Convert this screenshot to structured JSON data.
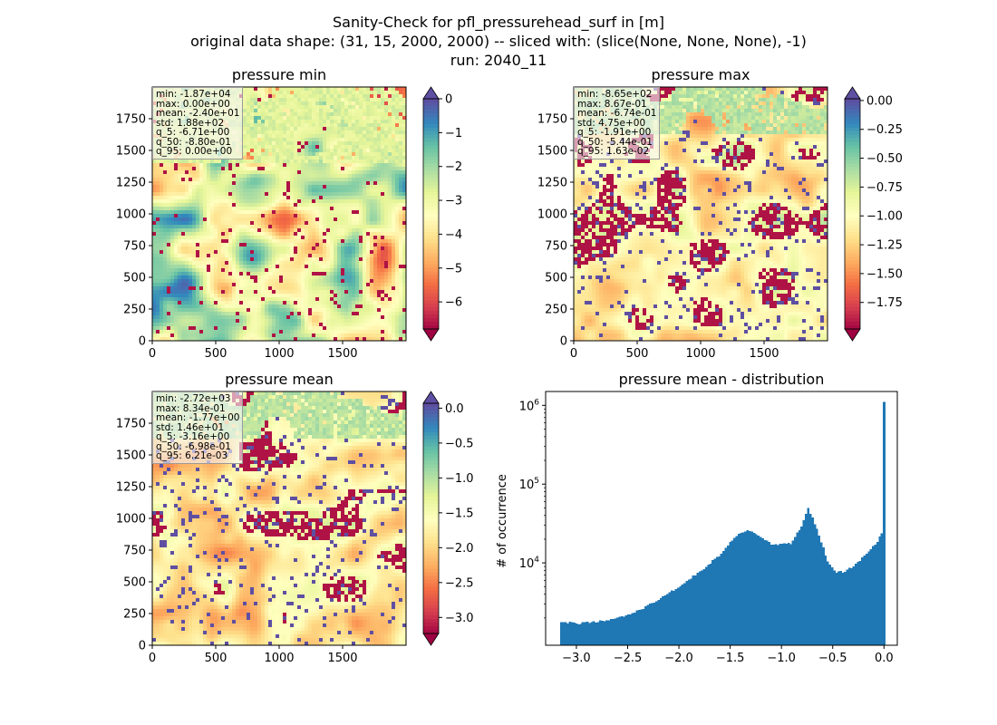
{
  "figure": {
    "title_line1": "Sanity-Check for pfl_pressurehead_surf in [m]",
    "title_line2": "original data shape: (31, 15, 2000, 2000) -- sliced with: (slice(None, None, None), -1)",
    "title_line3": "run: 2040_11"
  },
  "colormap": "Spectral",
  "chart_data": [
    {
      "type": "heatmap",
      "title": "pressure min",
      "xticks": [
        "0",
        "500",
        "1000",
        "1500"
      ],
      "yticks": [
        "0",
        "250",
        "500",
        "750",
        "1000",
        "1250",
        "1500",
        "1750"
      ],
      "xlim": [
        0,
        2000
      ],
      "ylim": [
        0,
        2000
      ],
      "colorbar": {
        "vmin": -6.8,
        "vmax": 0.0,
        "ticks": [
          0,
          -1,
          -2,
          -3,
          -4,
          -5,
          -6
        ],
        "labels": [
          "0",
          "−1",
          "−2",
          "−3",
          "−4",
          "−5",
          "−6"
        ],
        "extend": "both",
        "under_color": "#9e0142",
        "over_color": "#5e4fa2"
      },
      "stats": [
        "min: -1.87e+04",
        "max: 0.00e+00",
        "mean: -2.40e+01",
        "std: 1.88e+02",
        "q_5: -6.71e+00",
        "q_50: -8.80e-01",
        "q_95: 0.00e+00"
      ]
    },
    {
      "type": "heatmap",
      "title": "pressure max",
      "xticks": [
        "0",
        "500",
        "1000",
        "1500"
      ],
      "yticks": [
        "0",
        "250",
        "500",
        "750",
        "1000",
        "1250",
        "1500",
        "1750"
      ],
      "xlim": [
        0,
        2000
      ],
      "ylim": [
        0,
        2000
      ],
      "colorbar": {
        "vmin": -1.98,
        "vmax": 0.015,
        "ticks": [
          0,
          -0.25,
          -0.5,
          -0.75,
          -1.0,
          -1.25,
          -1.5,
          -1.75
        ],
        "labels": [
          "0.00",
          "−0.25",
          "−0.50",
          "−0.75",
          "−1.00",
          "−1.25",
          "−1.50",
          "−1.75"
        ],
        "extend": "both",
        "under_color": "#9e0142",
        "over_color": "#5e4fa2"
      },
      "stats": [
        "min: -8.65e+02",
        "max: 8.67e-01",
        "mean: -6.74e-01",
        "std: 4.75e+00",
        "q_5: -1.91e+00",
        "q_50: -5.44e-01",
        "q_95: 1.63e-02"
      ]
    },
    {
      "type": "heatmap",
      "title": "pressure mean",
      "xticks": [
        "0",
        "500",
        "1000",
        "1500"
      ],
      "yticks": [
        "0",
        "250",
        "500",
        "750",
        "1000",
        "1250",
        "1500",
        "1750"
      ],
      "xlim": [
        0,
        2000
      ],
      "ylim": [
        0,
        2000
      ],
      "colorbar": {
        "vmin": -3.23,
        "vmax": 0.07,
        "ticks": [
          0,
          -0.5,
          -1.0,
          -1.5,
          -2.0,
          -2.5,
          -3.0
        ],
        "labels": [
          "0.0",
          "−0.5",
          "−1.0",
          "−1.5",
          "−2.0",
          "−2.5",
          "−3.0"
        ],
        "extend": "both",
        "under_color": "#9e0142",
        "over_color": "#5e4fa2"
      },
      "stats": [
        "min: -2.72e+03",
        "max: 8.34e-01",
        "mean: -1.77e+00",
        "std: 1.46e+01",
        "q_5: -3.16e+00",
        "q_50: -6.98e-01",
        "q_95: 6.21e-03"
      ]
    },
    {
      "type": "bar",
      "title": "pressure mean - distribution",
      "xlabel": "",
      "ylabel": "# of occurrence",
      "yscale": "log",
      "xlim": [
        -3.3,
        0.13
      ],
      "ylim": [
        900,
        1500000
      ],
      "xticks": [
        -3.0,
        -2.5,
        -2.0,
        -1.5,
        -1.0,
        -0.5,
        0.0
      ],
      "xticklabels": [
        "−3.0",
        "−2.5",
        "−2.0",
        "−1.5",
        "−1.0",
        "−0.5",
        "0.0"
      ],
      "yticks": [
        10000,
        100000,
        1000000
      ],
      "yticklabels": [
        "10^4",
        "10^5",
        "10^6"
      ],
      "bar_color": "#1f77b4",
      "bins": {
        "start": -3.16,
        "end": 0.01,
        "count": 150
      },
      "key_points": [
        [
          -3.16,
          1800
        ],
        [
          -3.0,
          1700
        ],
        [
          -2.8,
          1800
        ],
        [
          -2.6,
          2000
        ],
        [
          -2.4,
          2450
        ],
        [
          -2.2,
          3400
        ],
        [
          -2.0,
          5000
        ],
        [
          -1.8,
          7600
        ],
        [
          -1.6,
          12500
        ],
        [
          -1.5,
          18000
        ],
        [
          -1.4,
          24500
        ],
        [
          -1.3,
          26000
        ],
        [
          -1.2,
          21000
        ],
        [
          -1.1,
          17500
        ],
        [
          -1.0,
          17000
        ],
        [
          -0.9,
          18000
        ],
        [
          -0.8,
          30000
        ],
        [
          -0.74,
          50000
        ],
        [
          -0.7,
          38000
        ],
        [
          -0.62,
          20000
        ],
        [
          -0.55,
          10500
        ],
        [
          -0.48,
          7600
        ],
        [
          -0.4,
          7700
        ],
        [
          -0.3,
          9000
        ],
        [
          -0.2,
          12000
        ],
        [
          -0.12,
          15500
        ],
        [
          -0.06,
          19000
        ],
        [
          -0.02,
          24000
        ],
        [
          0.0,
          1100000
        ]
      ]
    }
  ]
}
